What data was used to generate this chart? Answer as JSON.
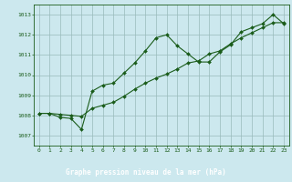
{
  "title": "Graphe pression niveau de la mer (hPa)",
  "background_color": "#cce8ee",
  "label_bg_color": "#2d6b3c",
  "grid_color": "#99bbbb",
  "line_color": "#1a5c1a",
  "marker_color": "#1a5c1a",
  "x_ticks": [
    0,
    1,
    2,
    3,
    4,
    5,
    6,
    7,
    8,
    9,
    10,
    11,
    12,
    13,
    14,
    15,
    16,
    17,
    18,
    19,
    20,
    21,
    22,
    23
  ],
  "y_ticks": [
    1007,
    1008,
    1009,
    1010,
    1011,
    1012,
    1013
  ],
  "ylim": [
    1006.5,
    1013.5
  ],
  "xlim": [
    -0.5,
    23.5
  ],
  "line1_y": [
    1008.1,
    1008.1,
    1007.9,
    1007.85,
    1007.3,
    1009.2,
    1009.5,
    1009.6,
    1010.1,
    1010.6,
    1011.2,
    1011.85,
    1012.0,
    1011.45,
    1011.05,
    1010.65,
    1010.65,
    1011.15,
    1011.5,
    1012.15,
    1012.35,
    1012.55,
    1013.0,
    1012.55
  ],
  "line2_y": [
    1008.1,
    1008.1,
    1008.05,
    1008.0,
    1007.95,
    1008.35,
    1008.5,
    1008.65,
    1008.95,
    1009.3,
    1009.6,
    1009.85,
    1010.05,
    1010.3,
    1010.6,
    1010.7,
    1011.05,
    1011.2,
    1011.55,
    1011.85,
    1012.1,
    1012.35,
    1012.6,
    1012.6
  ],
  "title_fontsize": 5.5,
  "tick_fontsize": 4.5,
  "title_color": "#ffffff",
  "tick_color": "#1a5c1a"
}
